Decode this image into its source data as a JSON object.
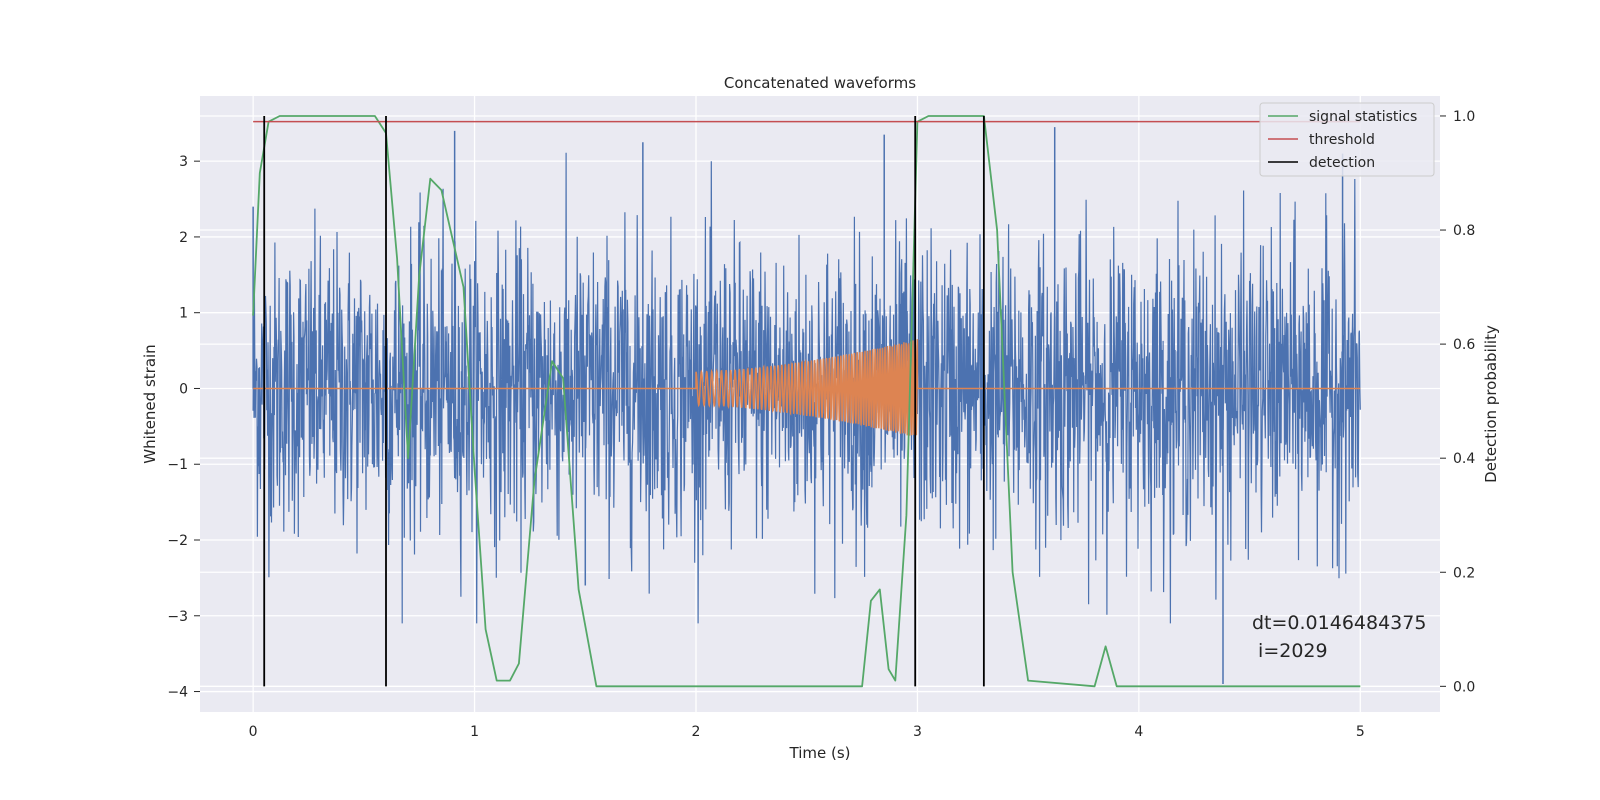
{
  "chart_data": {
    "type": "line",
    "title": "Concatenated waveforms",
    "xlabel": "Time (s)",
    "ylabel": "Whitened strain",
    "y2label": "Detection probability",
    "xlim": [
      -0.24,
      5.36
    ],
    "ylim": [
      -4.27,
      3.86
    ],
    "y2lim": [
      -0.045,
      1.035
    ],
    "x_ticks": [
      0,
      1,
      2,
      3,
      4,
      5
    ],
    "y_ticks": [
      -4,
      -3,
      -2,
      -1,
      0,
      1,
      2,
      3
    ],
    "y2_ticks": [
      0.0,
      0.2,
      0.4,
      0.6,
      0.8,
      1.0
    ],
    "y2_tick_labels": [
      "0.0",
      "0.2",
      "0.4",
      "0.6",
      "0.8",
      "1.0"
    ],
    "grid": true,
    "legend_position": "top-right",
    "series": [
      {
        "name": "",
        "axis": "left",
        "color": "#4c72b0",
        "description_kind": "noise",
        "x_range": [
          0,
          5
        ],
        "envelope_y": [
          -3.1,
          3.5
        ],
        "visible_peaks": [
          {
            "x": 0.0,
            "y": 2.4
          },
          {
            "x": 0.91,
            "y": 3.4
          },
          {
            "x": 1.5,
            "y": -2.6
          },
          {
            "x": 1.76,
            "y": 3.25
          },
          {
            "x": 2.85,
            "y": 3.35
          },
          {
            "x": 3.62,
            "y": 3.45
          },
          {
            "x": 4.38,
            "y": -3.9
          },
          {
            "x": 4.92,
            "y": 3.1
          }
        ]
      },
      {
        "name": "",
        "axis": "left",
        "color": "#dd8452",
        "description_kind": "chirp",
        "points": [
          {
            "x": 0.0,
            "y": 0.0
          },
          {
            "x": 2.0,
            "y": 0.0
          },
          {
            "x": 2.0,
            "y": 0.22
          },
          {
            "x": 2.5,
            "y": 0.36
          },
          {
            "x": 2.9,
            "y": 0.55
          },
          {
            "x": 3.0,
            "y": 0.65
          },
          {
            "x": 3.0,
            "y": 0.0
          },
          {
            "x": 5.0,
            "y": 0.0
          }
        ]
      },
      {
        "name": "signal statistics",
        "axis": "right",
        "color": "#55a868",
        "points": [
          {
            "x": 0.0,
            "y": 0.65
          },
          {
            "x": 0.03,
            "y": 0.9
          },
          {
            "x": 0.07,
            "y": 0.99
          },
          {
            "x": 0.12,
            "y": 1.0
          },
          {
            "x": 0.55,
            "y": 1.0
          },
          {
            "x": 0.6,
            "y": 0.97
          },
          {
            "x": 0.65,
            "y": 0.75
          },
          {
            "x": 0.7,
            "y": 0.4
          },
          {
            "x": 0.75,
            "y": 0.72
          },
          {
            "x": 0.8,
            "y": 0.89
          },
          {
            "x": 0.85,
            "y": 0.87
          },
          {
            "x": 0.95,
            "y": 0.7
          },
          {
            "x": 1.0,
            "y": 0.38
          },
          {
            "x": 1.05,
            "y": 0.1
          },
          {
            "x": 1.1,
            "y": 0.01
          },
          {
            "x": 1.16,
            "y": 0.01
          },
          {
            "x": 1.2,
            "y": 0.04
          },
          {
            "x": 1.27,
            "y": 0.36
          },
          {
            "x": 1.35,
            "y": 0.57
          },
          {
            "x": 1.4,
            "y": 0.54
          },
          {
            "x": 1.47,
            "y": 0.17
          },
          {
            "x": 1.55,
            "y": 0.0
          },
          {
            "x": 2.75,
            "y": 0.0
          },
          {
            "x": 2.79,
            "y": 0.15
          },
          {
            "x": 2.83,
            "y": 0.17
          },
          {
            "x": 2.87,
            "y": 0.03
          },
          {
            "x": 2.9,
            "y": 0.01
          },
          {
            "x": 2.95,
            "y": 0.3
          },
          {
            "x": 3.0,
            "y": 0.99
          },
          {
            "x": 3.05,
            "y": 1.0
          },
          {
            "x": 3.3,
            "y": 1.0
          },
          {
            "x": 3.36,
            "y": 0.8
          },
          {
            "x": 3.43,
            "y": 0.2
          },
          {
            "x": 3.5,
            "y": 0.01
          },
          {
            "x": 3.8,
            "y": 0.0
          },
          {
            "x": 3.85,
            "y": 0.07
          },
          {
            "x": 3.9,
            "y": 0.0
          },
          {
            "x": 5.0,
            "y": 0.0
          }
        ]
      },
      {
        "name": "threshold",
        "axis": "right",
        "color": "#c44e52",
        "points": [
          {
            "x": 0.0,
            "y": 0.99
          },
          {
            "x": 5.0,
            "y": 0.99
          }
        ]
      },
      {
        "name": "detection",
        "axis": "right",
        "color": "#000000",
        "vlines": [
          0.05,
          0.6,
          2.99,
          3.3
        ],
        "vline_range": [
          0.0,
          1.0
        ]
      }
    ],
    "annotations": [
      "dt=0.0146484375",
      " i=2029"
    ]
  }
}
